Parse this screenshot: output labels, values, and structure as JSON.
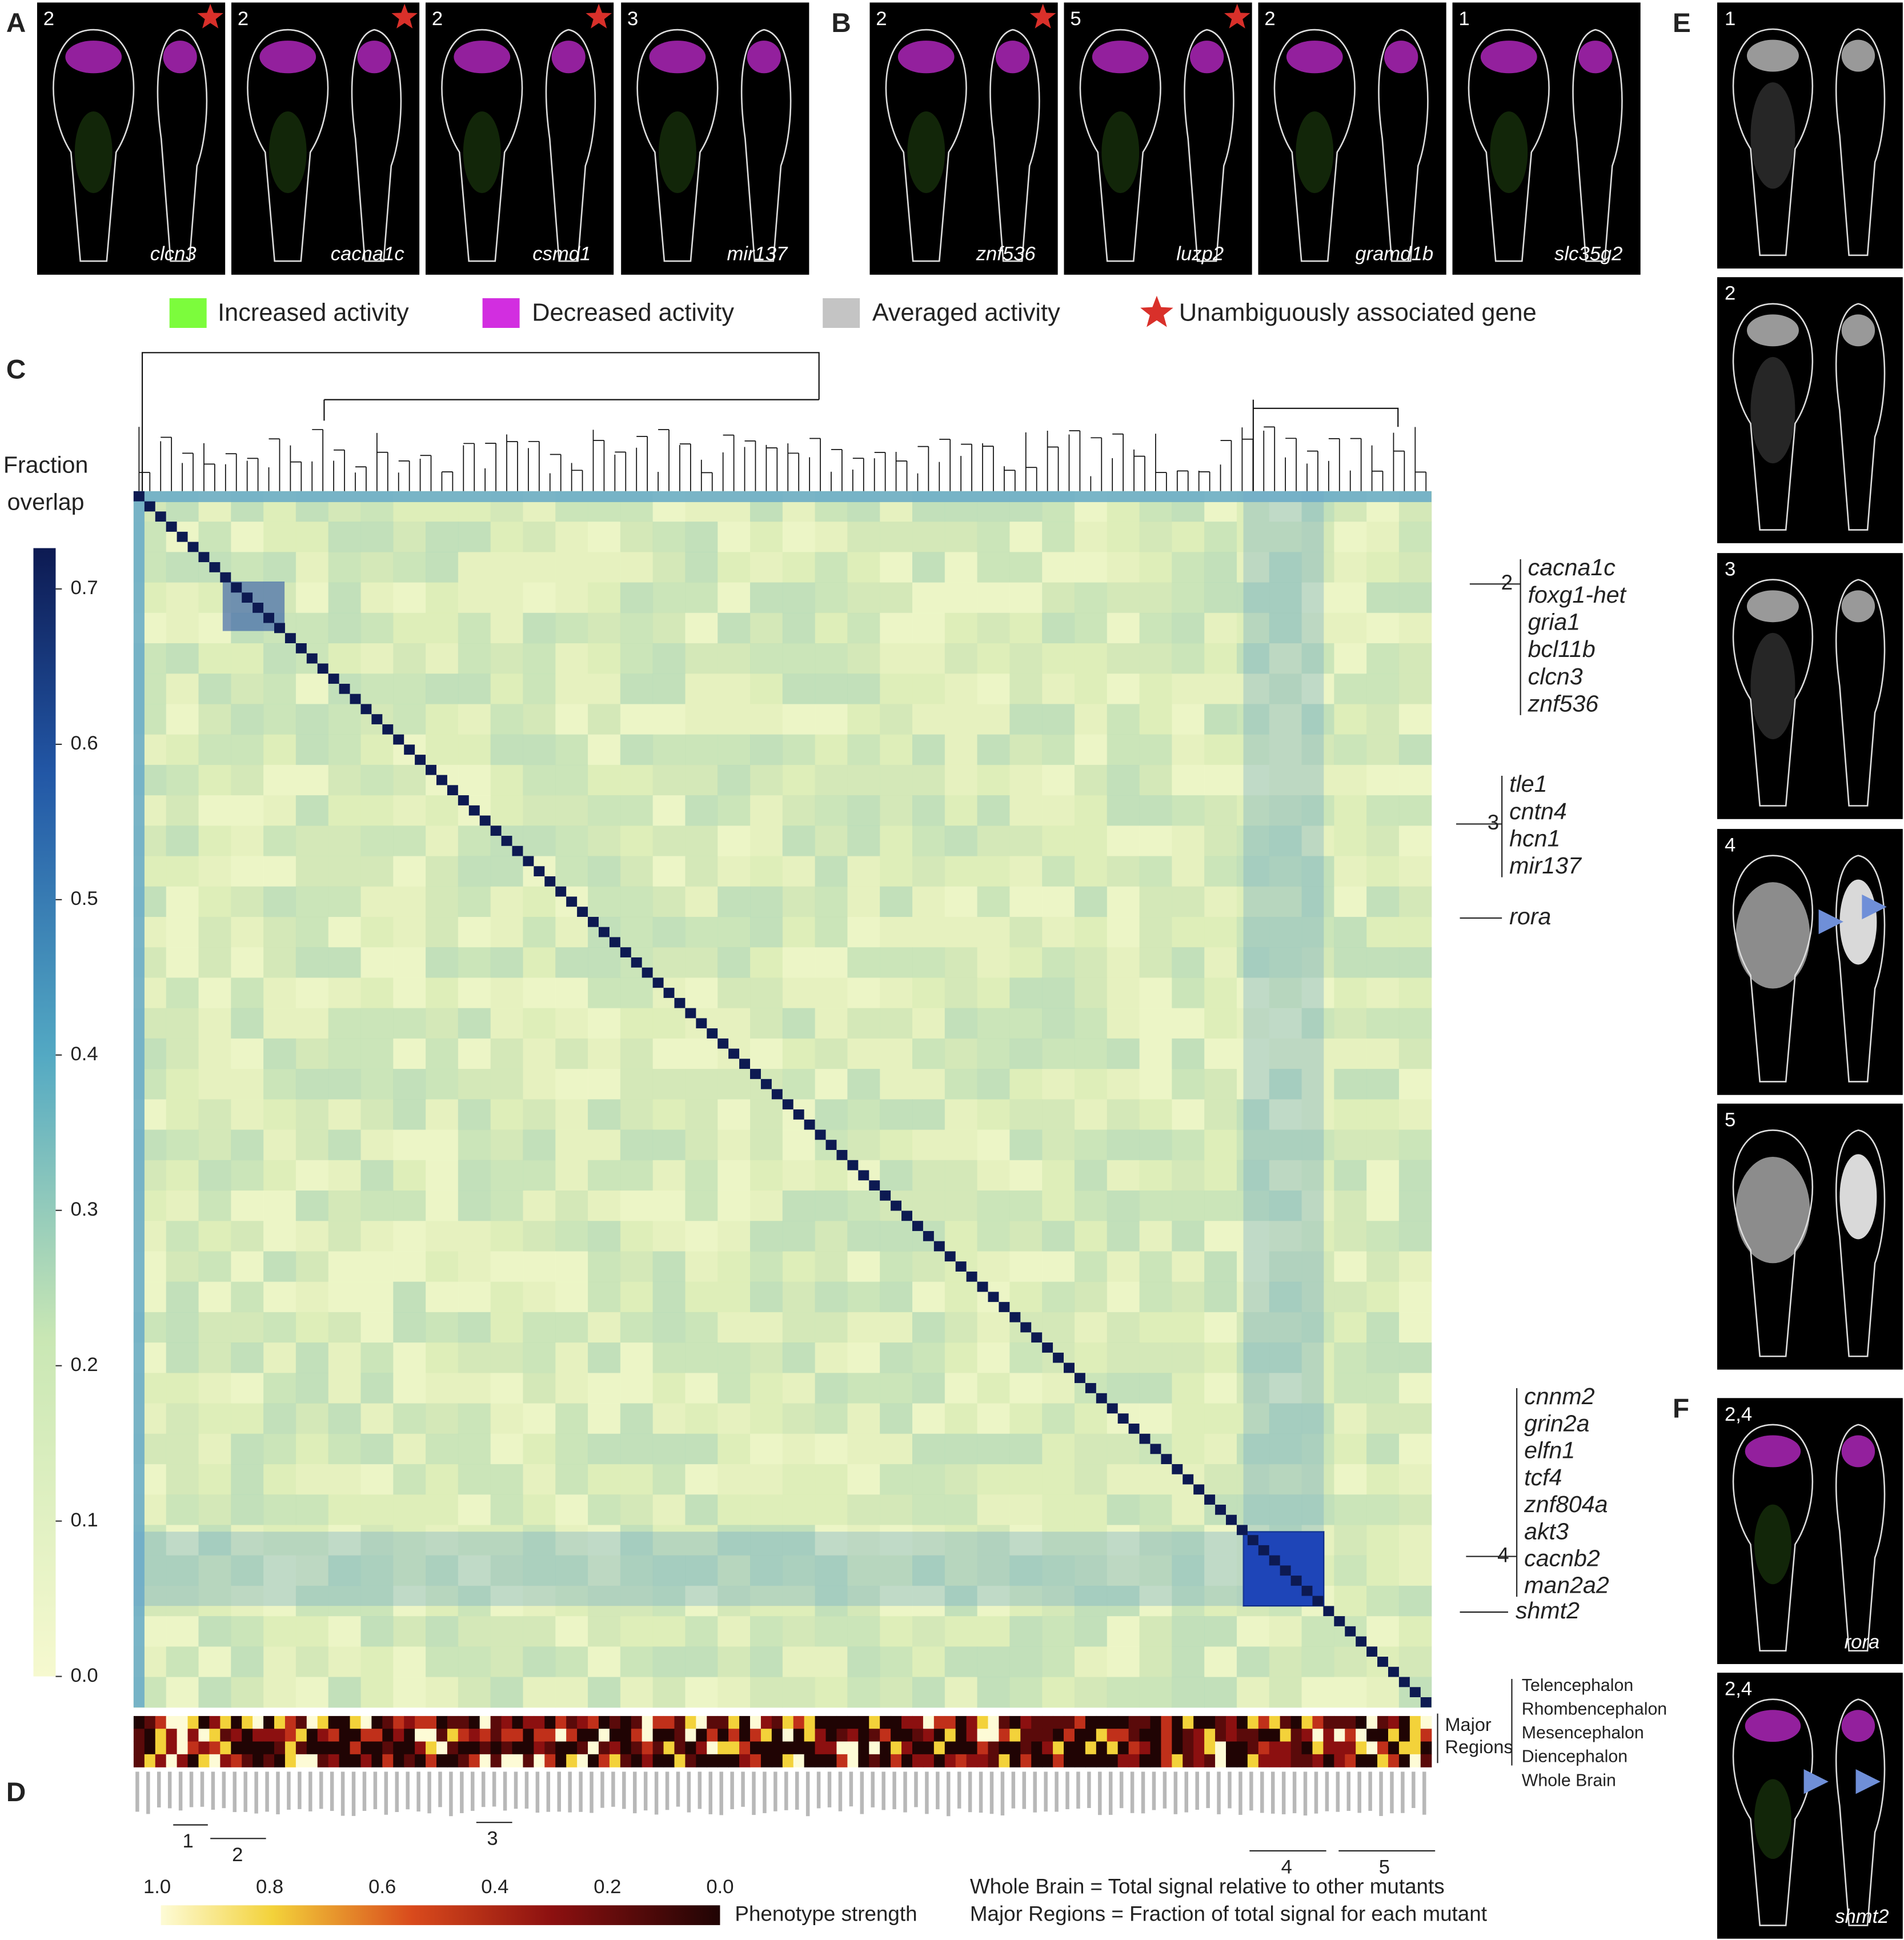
{
  "panel_a": {
    "label": "A",
    "images": [
      {
        "count": "2",
        "gene": "clcn3",
        "star": true
      },
      {
        "count": "2",
        "gene": "cacna1c",
        "star": true
      },
      {
        "count": "2",
        "gene": "csmd1",
        "star": true
      },
      {
        "count": "3",
        "gene": "mir137",
        "star": false
      }
    ]
  },
  "panel_b": {
    "label": "B",
    "images": [
      {
        "count": "2",
        "gene": "znf536",
        "star": true
      },
      {
        "count": "5",
        "gene": "luzp2",
        "star": true
      },
      {
        "count": "2",
        "gene": "gramd1b",
        "star": false
      },
      {
        "count": "1",
        "gene": "slc35g2",
        "star": false
      }
    ]
  },
  "legend": {
    "items": [
      {
        "text": "Increased activity",
        "color": "#7cfc3c"
      },
      {
        "text": "Decreased activity",
        "color": "#d22ee0"
      },
      {
        "text": "Averaged activity",
        "color": "#c4c4c4"
      },
      {
        "text": "Unambiguously associated gene",
        "color": "#d9302a"
      }
    ]
  },
  "panel_c": {
    "label": "C",
    "colorbar_title": [
      "Fraction",
      "overlap"
    ],
    "colorbar_ticks": [
      {
        "value": 0,
        "label": "0.0"
      },
      0.1,
      0.2,
      0.3,
      0.4,
      0.5,
      0.6,
      0.7
    ],
    "clusters": [
      {
        "number": "2",
        "genes": [
          "cacna1c",
          "foxg1-het",
          "gria1",
          "bcl11b",
          "clcn3",
          "znf536"
        ]
      },
      {
        "number": "3",
        "genes": [
          "tle1",
          "cntn4",
          "hcn1",
          "mir137"
        ]
      },
      {
        "number": "4",
        "genes": [
          "cnnm2",
          "grin2a",
          "elfn1",
          "tcf4",
          "znf804a",
          "akt3",
          "cacnb2",
          "man2a2"
        ]
      }
    ],
    "single_genes": [
      "rora",
      "shmt2"
    ],
    "region_title": [
      "Major",
      "Regions"
    ],
    "region_labels": [
      "Telencephalon",
      "Rhombencephalon",
      "Mesencephalon",
      "Diencephalon",
      "Whole Brain"
    ]
  },
  "panel_d": {
    "label": "D",
    "cluster_numbers": [
      "1",
      "2",
      "3",
      "4",
      "5"
    ],
    "phenotype_ticks": [
      {
        "value": 1,
        "label": "1.0"
      },
      0.8,
      0.6,
      0.4,
      0.2,
      {
        "value": 0,
        "label": "0.0"
      }
    ],
    "phenotype_title": "Phenotype strength",
    "notes": [
      "Whole Brain = Total signal relative to other mutants",
      "Major Regions = Fraction of total signal for each mutant"
    ]
  },
  "panel_e": {
    "label": "E",
    "images": [
      {
        "count": "1"
      },
      {
        "count": "2"
      },
      {
        "count": "3"
      },
      {
        "count": "4"
      },
      {
        "count": "5"
      }
    ]
  },
  "panel_f": {
    "label": "F",
    "images": [
      {
        "count": "2,4",
        "gene": "rora"
      },
      {
        "count": "2,4",
        "gene": "shmt2"
      }
    ]
  }
}
